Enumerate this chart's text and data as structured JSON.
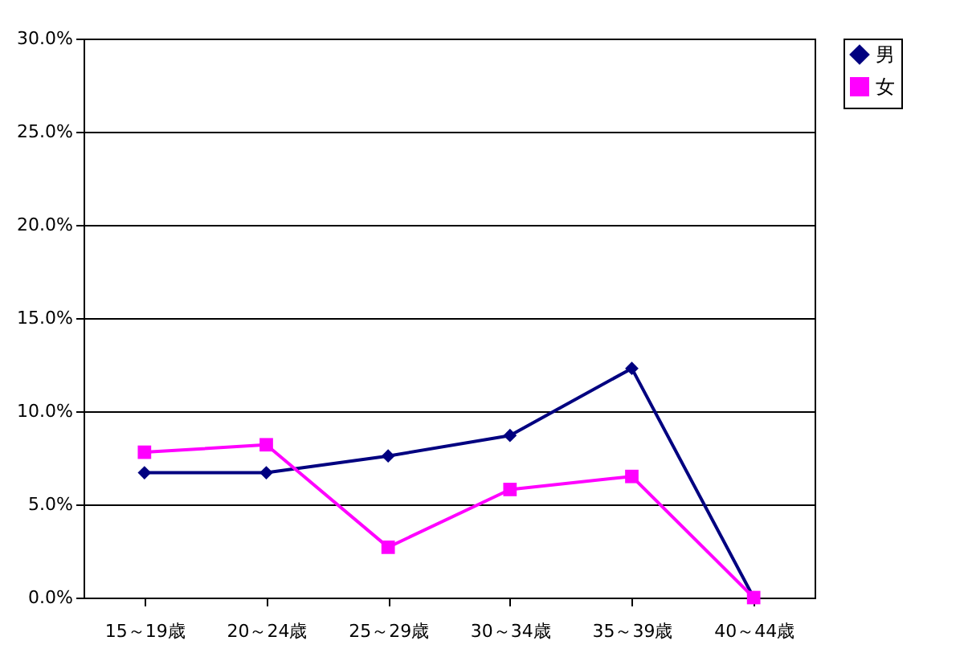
{
  "chart_data": {
    "type": "line",
    "categories": [
      "15～19歳",
      "20～24歳",
      "25～29歳",
      "30～34歳",
      "35～39歳",
      "40～44歳"
    ],
    "series": [
      {
        "name": "男",
        "color": "#000080",
        "marker": "diamond",
        "values": [
          6.7,
          6.7,
          7.6,
          8.7,
          12.3,
          0
        ]
      },
      {
        "name": "女",
        "color": "#ff00ff",
        "marker": "square",
        "values": [
          7.8,
          8.2,
          2.7,
          5.8,
          6.5,
          0
        ]
      }
    ],
    "ylim": [
      0,
      30
    ],
    "yticks": [
      {
        "value": 0,
        "label": "0.0%"
      },
      {
        "value": 5,
        "label": "5.0%"
      },
      {
        "value": 10,
        "label": "10.0%"
      },
      {
        "value": 15,
        "label": "15.0%"
      },
      {
        "value": 20,
        "label": "20.0%"
      },
      {
        "value": 25,
        "label": "25.0%"
      },
      {
        "value": 30,
        "label": "30.0%"
      }
    ],
    "grid": "y",
    "legend": "right",
    "line_style": "solid"
  }
}
